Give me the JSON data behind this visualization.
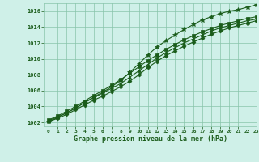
{
  "bg_color": "#cff0e8",
  "grid_color": "#88c4aa",
  "line_color": "#1a5c1a",
  "marker_color": "#1a5c1a",
  "xlabel": "Graphe pression niveau de la mer (hPa)",
  "xlim": [
    -0.5,
    23
  ],
  "ylim": [
    1001.5,
    1017.0
  ],
  "yticks": [
    1002,
    1004,
    1006,
    1008,
    1010,
    1012,
    1014,
    1016
  ],
  "xticks": [
    0,
    1,
    2,
    3,
    4,
    5,
    6,
    7,
    8,
    9,
    10,
    11,
    12,
    13,
    14,
    15,
    16,
    17,
    18,
    19,
    20,
    21,
    22,
    23
  ],
  "series": [
    [
      1002.1,
      1002.5,
      1003.0,
      1003.6,
      1004.2,
      1004.8,
      1005.3,
      1005.9,
      1006.5,
      1007.2,
      1008.0,
      1008.9,
      1009.7,
      1010.4,
      1011.0,
      1011.6,
      1012.1,
      1012.6,
      1013.1,
      1013.5,
      1013.9,
      1014.2,
      1014.5,
      1014.8
    ],
    [
      1002.2,
      1002.7,
      1003.2,
      1003.8,
      1004.5,
      1005.1,
      1005.7,
      1006.3,
      1006.9,
      1007.7,
      1008.5,
      1009.3,
      1010.1,
      1010.8,
      1011.4,
      1012.0,
      1012.5,
      1013.0,
      1013.5,
      1013.9,
      1014.2,
      1014.5,
      1014.8,
      1015.0
    ],
    [
      1002.3,
      1002.8,
      1003.4,
      1004.0,
      1004.7,
      1005.4,
      1006.0,
      1006.7,
      1007.4,
      1008.2,
      1009.0,
      1009.8,
      1010.5,
      1011.2,
      1011.8,
      1012.4,
      1012.9,
      1013.4,
      1013.8,
      1014.2,
      1014.5,
      1014.8,
      1015.1,
      1015.3
    ],
    [
      1002.1,
      1002.6,
      1003.2,
      1003.8,
      1004.5,
      1005.2,
      1005.8,
      1006.5,
      1007.3,
      1008.3,
      1009.4,
      1010.5,
      1011.5,
      1012.3,
      1013.0,
      1013.7,
      1014.3,
      1014.9,
      1015.3,
      1015.7,
      1016.0,
      1016.2,
      1016.5,
      1016.8
    ]
  ],
  "markers": [
    "D",
    "^",
    "s",
    "*"
  ],
  "markersizes": [
    2.5,
    3.0,
    2.5,
    4.0
  ],
  "linewidth": 0.8
}
